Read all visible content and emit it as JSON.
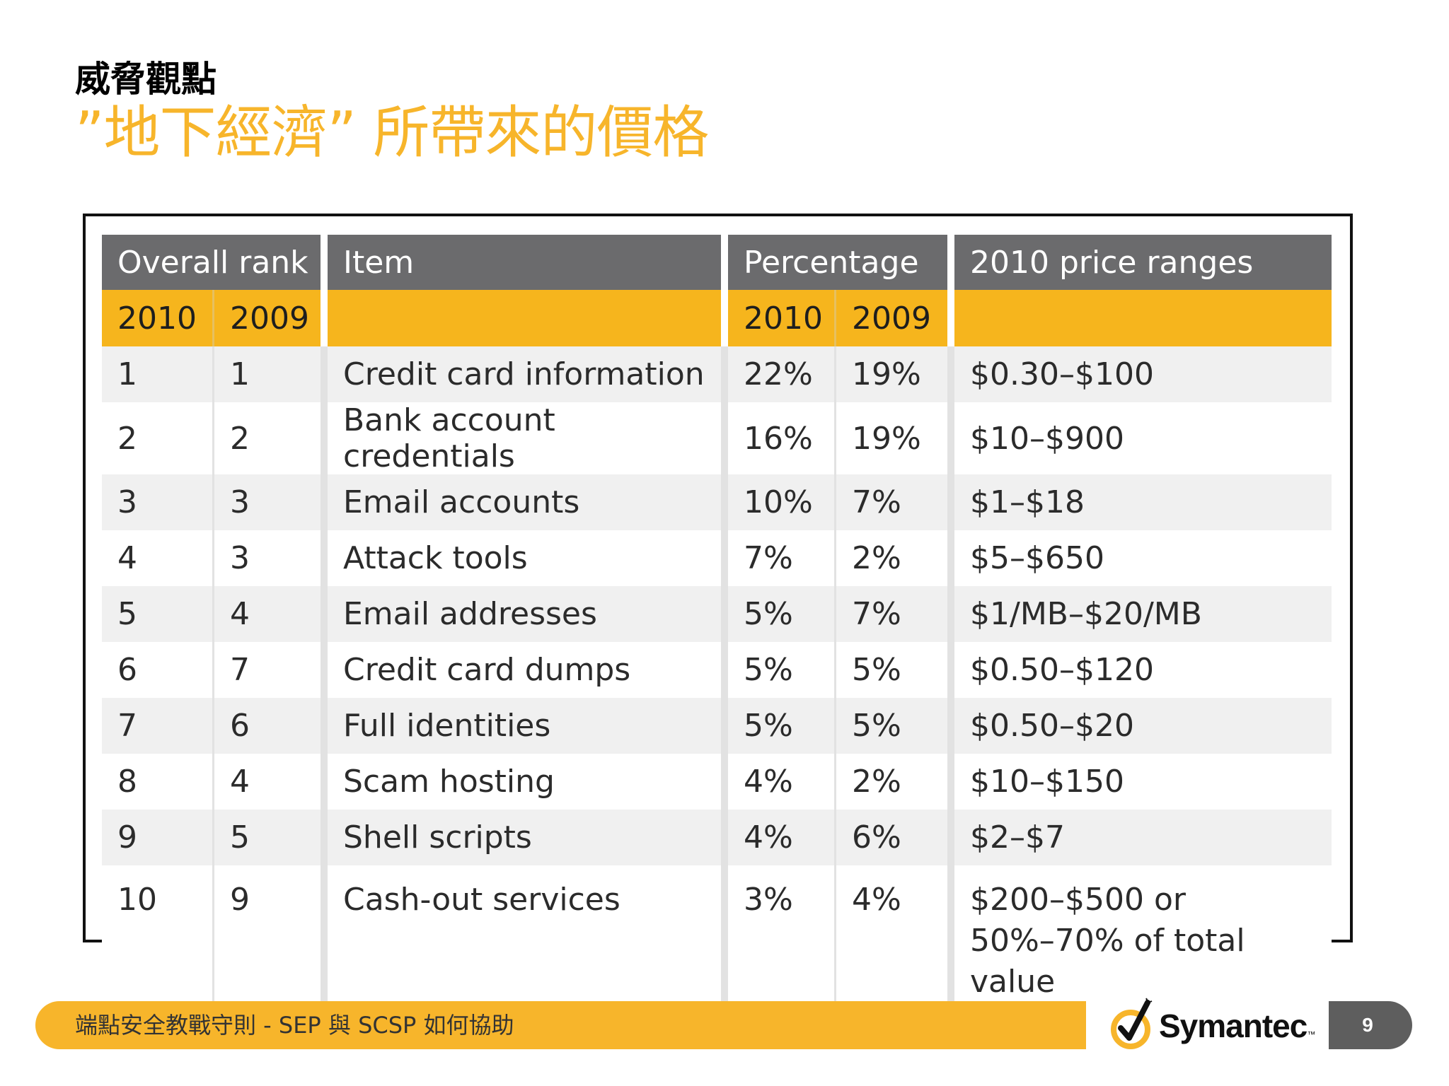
{
  "slide": {
    "heading": "威脅觀點",
    "title": "”地下經濟” 所帶來的價格",
    "page_number": "9"
  },
  "table": {
    "headers": {
      "rank": "Overall rank",
      "item": "Item",
      "percentage": "Percentage",
      "price": "2010 price ranges"
    },
    "years": {
      "rank_2010": "2010",
      "rank_2009": "2009",
      "pct_2010": "2010",
      "pct_2009": "2009"
    },
    "rows": [
      {
        "rank2010": "1",
        "rank2009": "1",
        "item": "Credit card information",
        "pct2010": "22%",
        "pct2009": "19%",
        "price": "$0.30–$100",
        "price2": ""
      },
      {
        "rank2010": "2",
        "rank2009": "2",
        "item": "Bank account credentials",
        "pct2010": "16%",
        "pct2009": "19%",
        "price": "$10–$900",
        "price2": ""
      },
      {
        "rank2010": "3",
        "rank2009": "3",
        "item": "Email accounts",
        "pct2010": "10%",
        "pct2009": "7%",
        "price": "$1–$18",
        "price2": ""
      },
      {
        "rank2010": "4",
        "rank2009": "3",
        "item": "Attack tools",
        "pct2010": "7%",
        "pct2009": "2%",
        "price": "$5–$650",
        "price2": ""
      },
      {
        "rank2010": "5",
        "rank2009": "4",
        "item": "Email addresses",
        "pct2010": "5%",
        "pct2009": "7%",
        "price": "$1/MB–$20/MB",
        "price2": ""
      },
      {
        "rank2010": "6",
        "rank2009": "7",
        "item": "Credit card dumps",
        "pct2010": "5%",
        "pct2009": "5%",
        "price": "$0.50–$120",
        "price2": ""
      },
      {
        "rank2010": "7",
        "rank2009": "6",
        "item": "Full identities",
        "pct2010": "5%",
        "pct2009": "5%",
        "price": "$0.50–$20",
        "price2": ""
      },
      {
        "rank2010": "8",
        "rank2009": "4",
        "item": "Scam hosting",
        "pct2010": "4%",
        "pct2009": "2%",
        "price": "$10–$150",
        "price2": ""
      },
      {
        "rank2010": "9",
        "rank2009": "5",
        "item": "Shell scripts",
        "pct2010": "4%",
        "pct2009": "6%",
        "price": "$2–$7",
        "price2": ""
      },
      {
        "rank2010": "10",
        "rank2009": "9",
        "item": "Cash-out services",
        "pct2010": "3%",
        "pct2009": "4%",
        "price": "$200–$500 or",
        "price2": "50%–70% of total value"
      }
    ]
  },
  "footer": {
    "text": "端點安全教戰守則 - SEP 與 SCSP 如何協助",
    "logo_text": "Symantec",
    "logo_mark": "™"
  },
  "colors": {
    "accent": "#f7b52b",
    "header_gray": "#6b6b6d",
    "year_yellow": "#f6b51d",
    "row_stripe": "#f0f0f0"
  }
}
